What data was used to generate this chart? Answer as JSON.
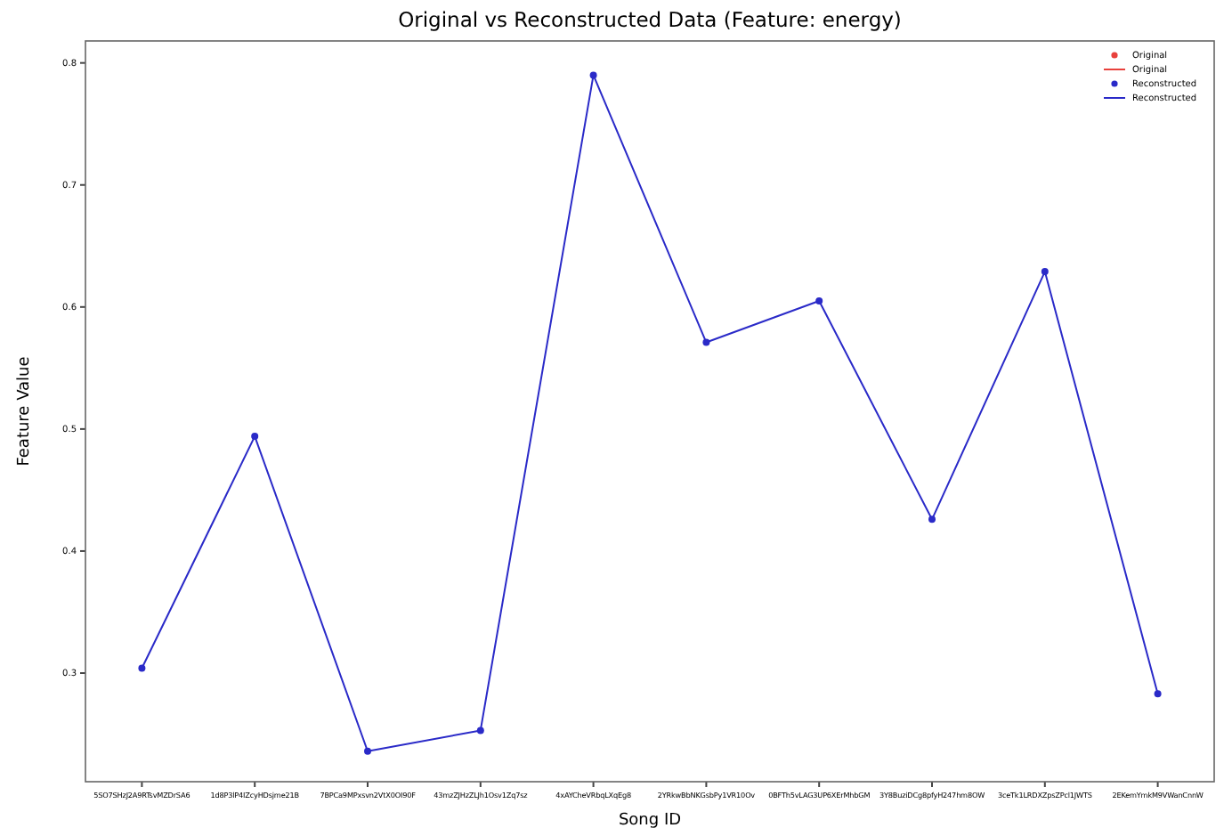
{
  "chart_data": {
    "type": "line",
    "title": "Original vs Reconstructed Data (Feature: energy)",
    "xlabel": "Song ID",
    "ylabel": "Feature Value",
    "categories": [
      "5SO7SHzJ2A9RTsvMZDrSA6",
      "1d8P3lP4IZcyHDsjme21B",
      "7BPCa9MPxsvn2VtX0OI90F",
      "43mzZJHzZLJh1Osv1Zq7sz",
      "4xAYCheVRbqLXqEg8",
      "2YRkwBbNKGsbPy1VR10Ov",
      "0BFTh5vLAG3UP6XErMhbGM",
      "3Y8BuziDCg8pfyH247hm8OW",
      "3ceTk1LRDXZpsZPcl1JWTS",
      "2EKemYmkM9VWanCnnW"
    ],
    "series": [
      {
        "name": "Original",
        "color": "#e8413c",
        "values": [
          null,
          null,
          null,
          null,
          null,
          null,
          null,
          null,
          null,
          null
        ]
      },
      {
        "name": "Reconstructed",
        "color": "#2a2ac8",
        "values": [
          0.304,
          0.494,
          0.236,
          0.253,
          0.79,
          0.571,
          0.605,
          0.426,
          0.629,
          0.283
        ]
      }
    ],
    "marker": "circle",
    "line_style": "solid",
    "legend": "top right",
    "grid": false,
    "ylim": [
      0.211,
      0.818
    ],
    "yticks": [
      0.3,
      0.4,
      0.5,
      0.6,
      0.7,
      0.8
    ]
  }
}
